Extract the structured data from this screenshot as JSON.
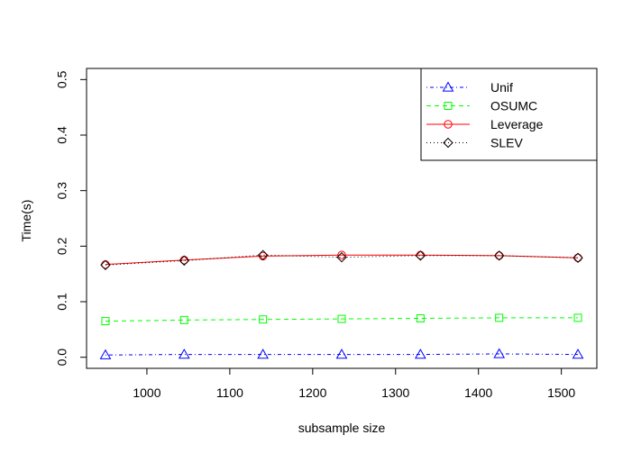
{
  "chart_data": {
    "type": "line",
    "title": "",
    "xlabel": "subsample size",
    "ylabel": "Time(s)",
    "x": [
      950,
      1045,
      1140,
      1235,
      1330,
      1425,
      1520
    ],
    "xlim": [
      950,
      1520
    ],
    "xticks": [
      1000,
      1100,
      1200,
      1300,
      1400,
      1500
    ],
    "ylim": [
      0,
      0.5
    ],
    "yticks": [
      0.0,
      0.1,
      0.2,
      0.3,
      0.4,
      0.5
    ],
    "ytick_labels": [
      "0.0",
      "0.1",
      "0.2",
      "0.3",
      "0.4",
      "0.5"
    ],
    "grid": false,
    "legend_position": "top-right",
    "series": [
      {
        "name": "Unif",
        "color": "#0000ff",
        "line": "dashdot",
        "marker": "triangle",
        "values": [
          0.004,
          0.005,
          0.005,
          0.005,
          0.005,
          0.006,
          0.005
        ]
      },
      {
        "name": "OSUMC",
        "color": "#00ff00",
        "line": "dashed",
        "marker": "square",
        "values": [
          0.065,
          0.067,
          0.068,
          0.069,
          0.07,
          0.071,
          0.071
        ]
      },
      {
        "name": "Leverage",
        "color": "#ff0000",
        "line": "solid",
        "marker": "circle",
        "values": [
          0.167,
          0.175,
          0.182,
          0.184,
          0.184,
          0.183,
          0.179
        ]
      },
      {
        "name": "SLEV",
        "color": "#000000",
        "line": "dotted",
        "marker": "diamond",
        "values": [
          0.166,
          0.174,
          0.184,
          0.18,
          0.183,
          0.183,
          0.179
        ]
      }
    ]
  }
}
